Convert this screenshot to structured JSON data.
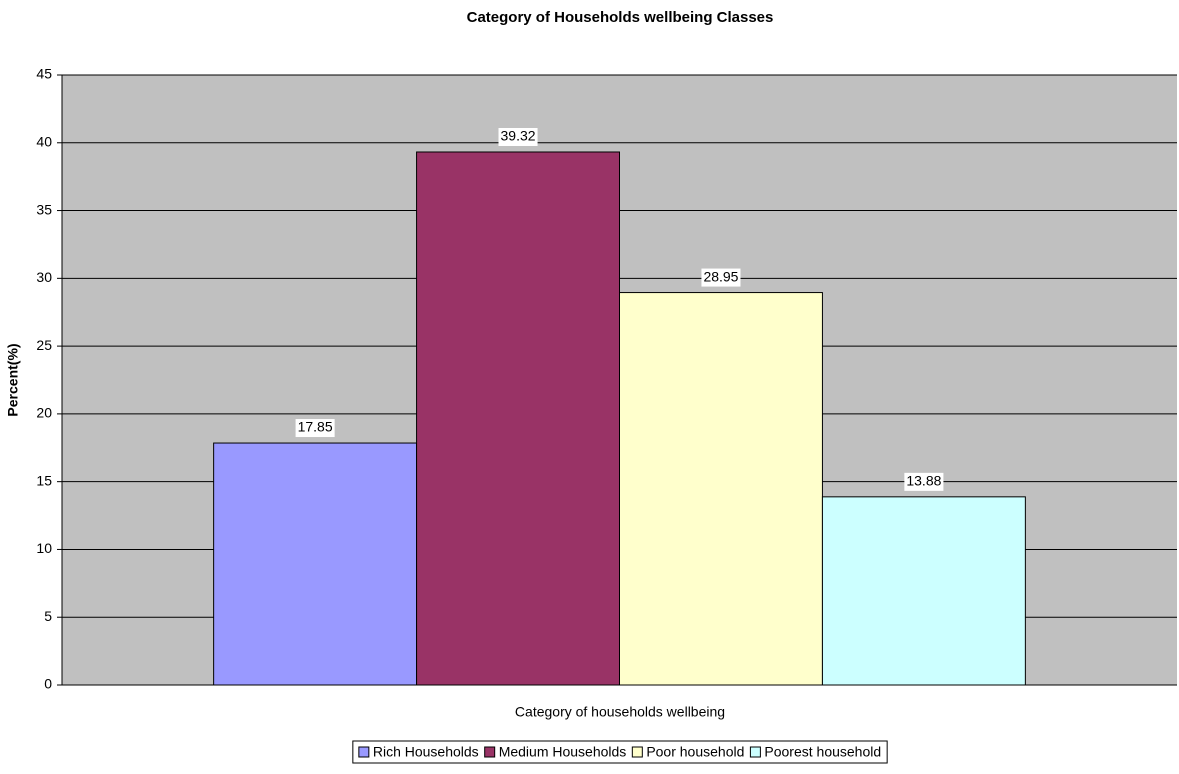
{
  "chart_data": {
    "type": "bar",
    "title": "Category of Households wellbeing Classes",
    "x_label": "Category of households wellbeing",
    "y_label": "Percent(%)",
    "categories": [
      null
    ],
    "series": [
      {
        "name": "Rich Households",
        "color": "#9999ff",
        "values": [
          17.85
        ]
      },
      {
        "name": "Medium Households",
        "color": "#993366",
        "values": [
          39.32
        ]
      },
      {
        "name": "Poor household",
        "color": "#ffffcc",
        "values": [
          28.95
        ]
      },
      {
        "name": "Poorest household",
        "color": "#ccffff",
        "values": [
          13.88
        ]
      }
    ],
    "ylim": [
      0,
      45
    ],
    "yticks": [
      0,
      5,
      10,
      15,
      20,
      25,
      30,
      35,
      40,
      45
    ],
    "grid": true,
    "plot_background": "#c0c0c0",
    "legend": "bottom",
    "data_labels": true
  }
}
